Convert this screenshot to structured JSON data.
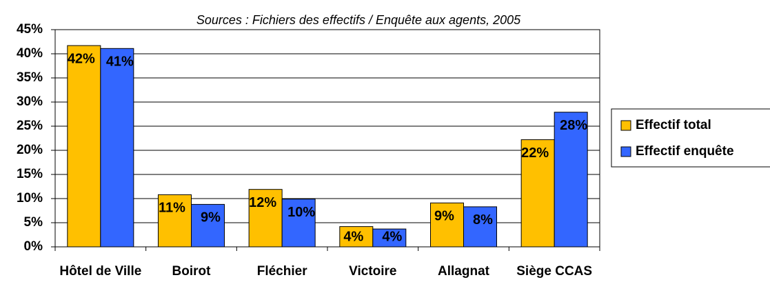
{
  "chart_data": {
    "type": "bar",
    "title": "Sources : Fichiers des effectifs / Enquête aux agents, 2005",
    "categories": [
      "Hôtel de Ville",
      "Boirot",
      "Fléchier",
      "Victoire",
      "Allagnat",
      "Siège CCAS"
    ],
    "series": [
      {
        "name": "Effectif total",
        "color": "#FFC000",
        "values": [
          41.7,
          10.8,
          11.9,
          4.2,
          9.1,
          22.2
        ],
        "value_labels": [
          "42%",
          "11%",
          "12%",
          "4%",
          "9%",
          "22%"
        ]
      },
      {
        "name": "Effectif enquête",
        "color": "#3366FF",
        "values": [
          41.1,
          8.8,
          9.9,
          3.7,
          8.3,
          27.9
        ],
        "value_labels": [
          "41%",
          "9%",
          "10%",
          "4%",
          "8%",
          "28%"
        ]
      }
    ],
    "ylim": [
      0,
      45
    ],
    "yticks": [
      {
        "value": 0,
        "label": "0%"
      },
      {
        "value": 5,
        "label": "5%"
      },
      {
        "value": 10,
        "label": "10%"
      },
      {
        "value": 15,
        "label": "15%"
      },
      {
        "value": 20,
        "label": "20%"
      },
      {
        "value": 25,
        "label": "25%"
      },
      {
        "value": 30,
        "label": "30%"
      },
      {
        "value": 35,
        "label": "35%"
      },
      {
        "value": 40,
        "label": "40%"
      },
      {
        "value": 45,
        "label": "45%"
      }
    ],
    "grid": true,
    "legend": "right"
  }
}
